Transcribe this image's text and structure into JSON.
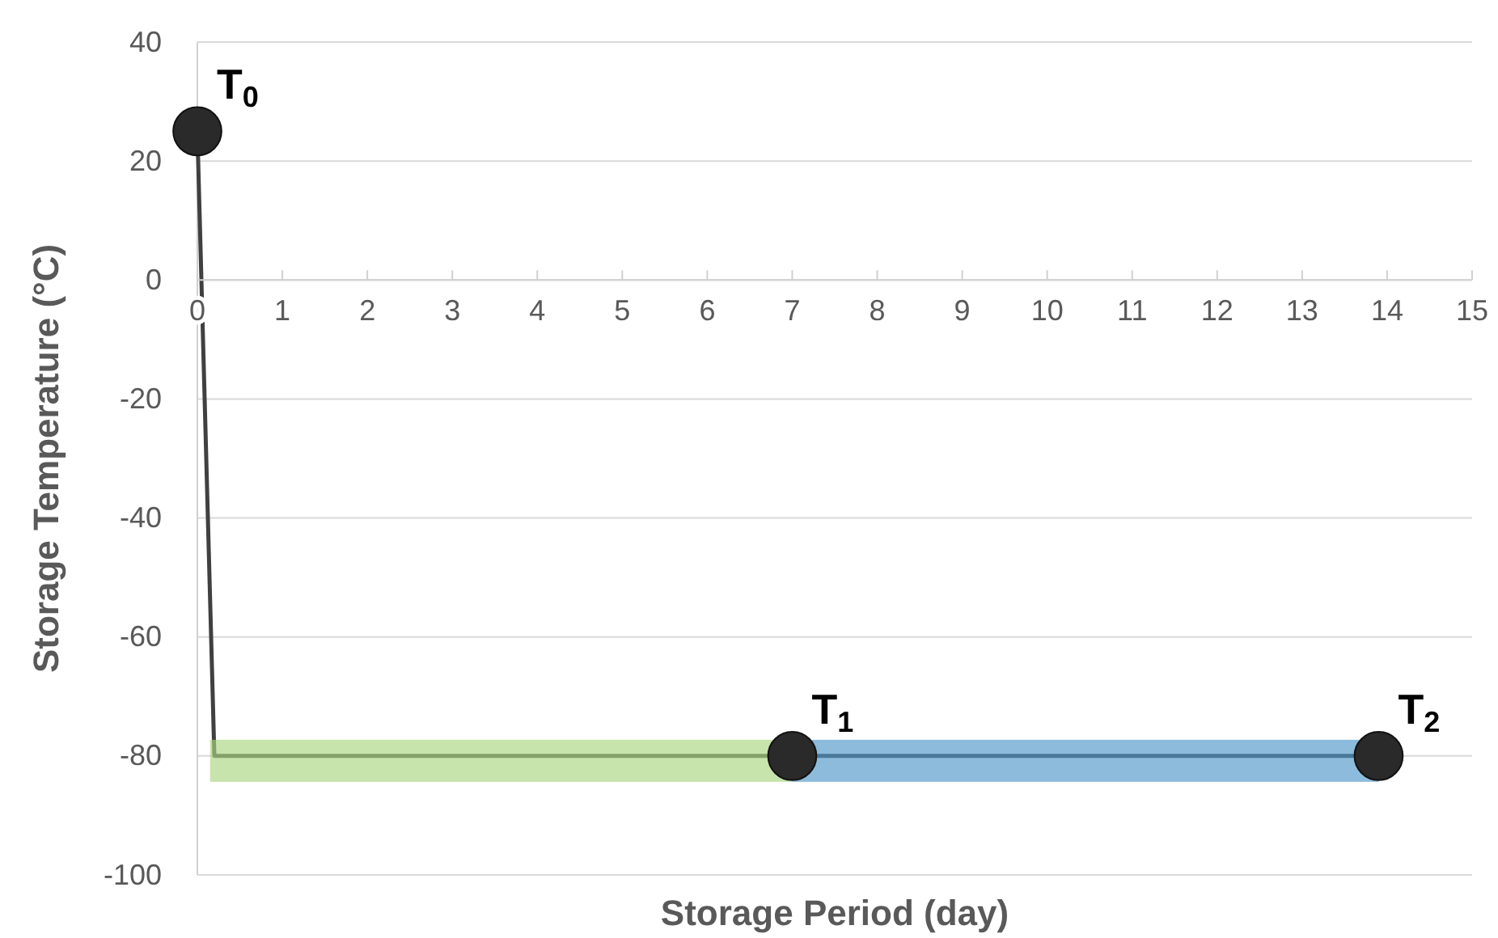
{
  "chart_data": {
    "type": "line",
    "xlabel": "Storage Period (day)",
    "ylabel": "Storage Temperature (°C)",
    "xlim": [
      0,
      15
    ],
    "xticks": [
      0,
      1,
      2,
      3,
      4,
      5,
      6,
      7,
      8,
      9,
      10,
      11,
      12,
      13,
      14,
      15
    ],
    "ylim": [
      -100,
      40
    ],
    "yticks": [
      -100,
      -80,
      -60,
      -40,
      -20,
      0,
      20,
      40
    ],
    "grid": "y",
    "series": [
      {
        "color": "#404040",
        "x": [
          0,
          0.2,
          7,
          13.9
        ],
        "values": [
          25,
          -80,
          -80,
          -80
        ],
        "marker": "none"
      },
      {
        "type": "scatter",
        "color": "#2a2a2a",
        "x": [
          0,
          7,
          13.9
        ],
        "values": [
          25,
          -80,
          -80
        ],
        "marker": "circle"
      }
    ],
    "bands": [
      {
        "axis": "x",
        "from": 0.15,
        "to": 7,
        "color": "#a8d67f"
      },
      {
        "axis": "x",
        "from": 7,
        "to": 13.9,
        "color": "#4e97c9"
      }
    ],
    "annotations": [
      {
        "text": "T$_{0}$",
        "x": 0,
        "y": 25
      },
      {
        "text": "T$_{1}$",
        "x": 7,
        "y": -80
      },
      {
        "text": "T$_{2}$",
        "x": 13.9,
        "y": -80
      }
    ]
  }
}
